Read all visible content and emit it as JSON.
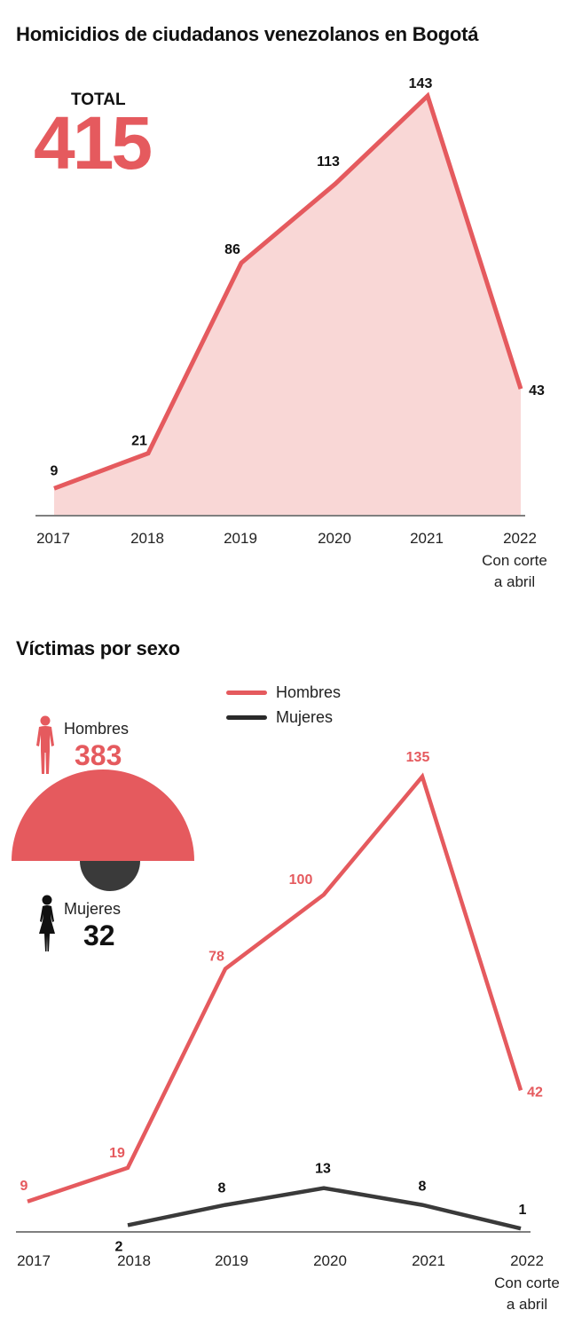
{
  "colors": {
    "accent": "#e55a5e",
    "area_fill": "#f9d7d6",
    "dark": "#3a3a3a"
  },
  "chart_data": [
    {
      "type": "area",
      "title": "Homicidios de ciudadanos venezolanos en Bogotá",
      "total_label": "TOTAL",
      "total_value": "415",
      "categories": [
        "2017",
        "2018",
        "2019",
        "2020",
        "2021",
        "2022"
      ],
      "last_category_note": [
        "Con corte",
        "a abril"
      ],
      "values": [
        9,
        21,
        86,
        113,
        143,
        43
      ],
      "xlabel": "",
      "ylabel": "",
      "ylim": [
        0,
        150
      ],
      "grid": false
    },
    {
      "type": "line",
      "title": "Víctimas por sexo",
      "categories": [
        "2017",
        "2018",
        "2019",
        "2020",
        "2021",
        "2022"
      ],
      "last_category_note": [
        "Con corte",
        "a abril"
      ],
      "legend": {
        "position": "top",
        "entries": [
          "Hombres",
          "Mujeres"
        ]
      },
      "series": [
        {
          "name": "Hombres",
          "color": "#e55a5e",
          "values": [
            9,
            19,
            78,
            100,
            135,
            42
          ]
        },
        {
          "name": "Mujeres",
          "color": "#3a3a3a",
          "values": [
            null,
            2,
            8,
            13,
            8,
            1
          ]
        }
      ],
      "ylim": [
        0,
        150
      ],
      "grid": false
    }
  ],
  "sex_summary": {
    "men_label": "Hombres",
    "men_value": "383",
    "women_label": "Mujeres",
    "women_value": "32",
    "men_icon": "man-silhouette-icon",
    "women_icon": "woman-silhouette-icon"
  }
}
